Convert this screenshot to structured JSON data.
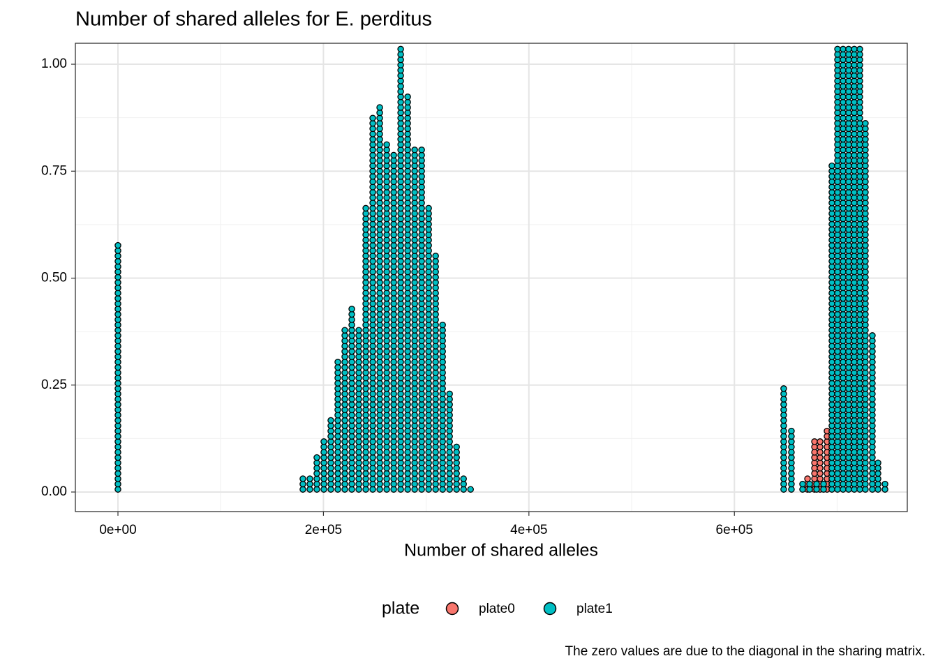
{
  "chart_data": {
    "type": "dotplot",
    "title": "Number of shared alleles for E. perditus",
    "xlabel": "Number of shared alleles",
    "caption": "The zero values are due to the diagonal in the sharing matrix.",
    "legend_title": "plate",
    "legend_position": "bottom",
    "grid": true,
    "xlim": [
      -41440,
      768300
    ],
    "ylim": [
      -0.0457,
      1.049
    ],
    "xticks": [
      {
        "value": 0,
        "label": "0e+00"
      },
      {
        "value": 200000,
        "label": "2e+05"
      },
      {
        "value": 400000,
        "label": "4e+05"
      },
      {
        "value": 600000,
        "label": "6e+05"
      }
    ],
    "xminor": [
      100000,
      300000,
      500000,
      700000
    ],
    "yticks": [
      {
        "value": 0,
        "label": "0.00"
      },
      {
        "value": 0.25,
        "label": "0.25"
      },
      {
        "value": 0.5,
        "label": "0.50"
      },
      {
        "value": 0.75,
        "label": "0.75"
      },
      {
        "value": 1,
        "label": "1.00"
      }
    ],
    "yminor": [
      0.125,
      0.375,
      0.625,
      0.875
    ],
    "series": [
      {
        "name": "plate0",
        "color": "#F8766D",
        "x": [
          671200,
          678000,
          683400,
          690200
        ],
        "values": [
          3,
          10,
          10,
          12
        ]
      },
      {
        "name": "plate1",
        "color": "#00BFC4",
        "x": [
          0,
          180000,
          186800,
          193600,
          200400,
          207200,
          214000,
          220800,
          227600,
          234400,
          241200,
          248000,
          254800,
          261600,
          268400,
          275200,
          282000,
          288800,
          295600,
          302400,
          309200,
          316000,
          322800,
          329600,
          336400,
          343200,
          648000,
          655500,
          666400,
          673200,
          680000,
          686800,
          694900,
          700400,
          705800,
          711200,
          716700,
          722100,
          727500,
          734300,
          739800,
          746600
        ],
        "values": [
          47,
          3,
          3,
          7,
          10,
          14,
          25,
          31,
          35,
          31,
          54,
          71,
          73,
          66,
          64,
          84,
          75,
          65,
          65,
          54,
          45,
          32,
          19,
          9,
          3,
          1,
          20,
          12,
          2,
          2,
          2,
          2,
          62,
          84,
          84,
          84,
          84,
          84,
          70,
          30,
          6,
          2
        ]
      }
    ]
  }
}
